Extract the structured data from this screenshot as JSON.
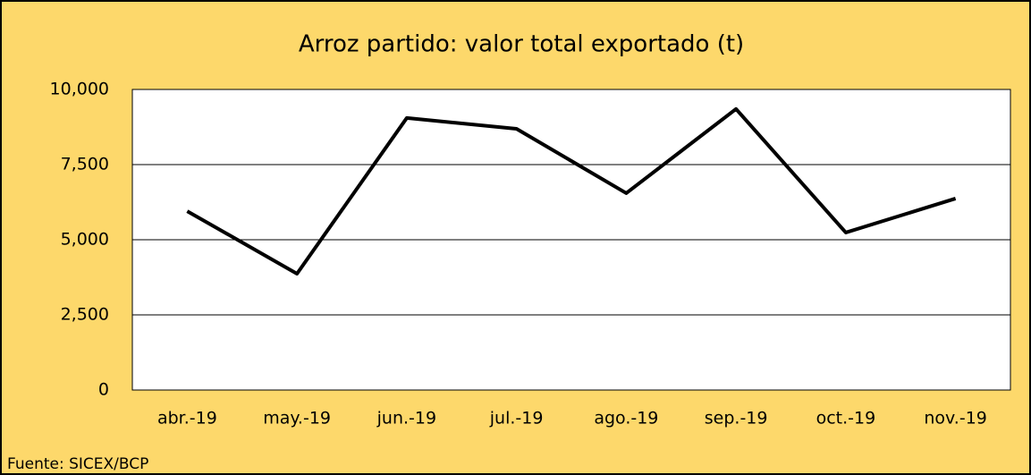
{
  "chart_data": {
    "type": "line",
    "title": "Arroz partido: valor total exportado (t)",
    "categories": [
      "abr.-19",
      "may.-19",
      "jun.-19",
      "jul.-19",
      "ago.-19",
      "sep.-19",
      "oct.-19",
      "nov.-19"
    ],
    "values": [
      5950,
      3870,
      9050,
      8690,
      6550,
      9350,
      5240,
      6370
    ],
    "color": "#000000",
    "ylim": [
      0,
      10000
    ],
    "yticks": [
      0,
      {
        "value": 2500,
        "label": "2,500"
      },
      {
        "value": 5000,
        "label": "5,000"
      },
      {
        "value": 7500,
        "label": "7,500"
      },
      {
        "value": 10000,
        "label": "10,000"
      }
    ],
    "grid": true,
    "source": "Fuente: SICEX/BCP"
  }
}
